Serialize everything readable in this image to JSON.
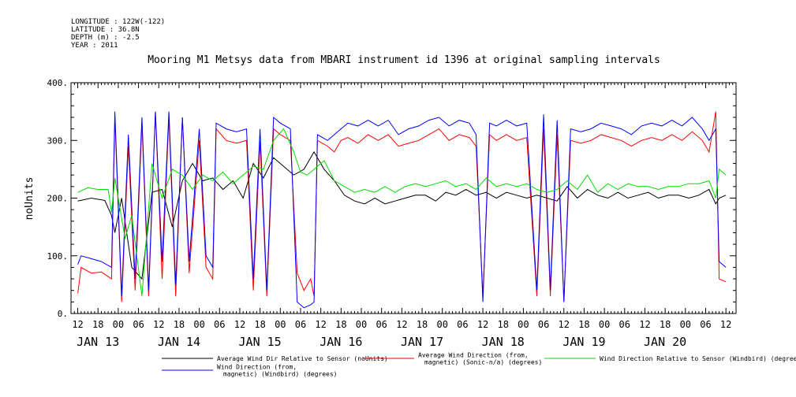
{
  "header": {
    "meta": [
      "LONGITUDE : 122W(-122)",
      "LATITUDE : 36.8N",
      "DEPTH (m) : -2.5",
      "YEAR : 2011"
    ]
  },
  "chart_data": {
    "type": "line",
    "title": "Mooring M1 Metsys data from MBARI instrument id 1396 at original sampling intervals",
    "ylabel": "noUnits",
    "xlabel": "",
    "ylim": [
      0,
      400
    ],
    "yticks": [
      0,
      100,
      200,
      300,
      400
    ],
    "ytick_labels": [
      "0.",
      "100.",
      "200.",
      "300.",
      "400."
    ],
    "x_range_hours": [
      -2,
      195
    ],
    "hour_tick_labels": [
      "12",
      "18",
      "00",
      "06",
      "12",
      "18",
      "00",
      "06",
      "12",
      "18",
      "00",
      "06",
      "12",
      "18",
      "00",
      "06",
      "12",
      "18",
      "00",
      "06",
      "12",
      "18",
      "00",
      "06",
      "12",
      "18",
      "00",
      "06",
      "12",
      "18",
      "00",
      "06",
      "12"
    ],
    "date_labels": [
      "JAN 13",
      "JAN 14",
      "JAN 15",
      "JAN 16",
      "JAN 17",
      "JAN 18",
      "JAN 19",
      "JAN 20"
    ],
    "grid": false,
    "legend_placement": "bottom",
    "series": [
      {
        "name": "Average Wind Dir Relative to Sensor (noUnits)",
        "color": "#000000",
        "points": [
          [
            0,
            195
          ],
          [
            4,
            200
          ],
          [
            8,
            196
          ],
          [
            10,
            170
          ],
          [
            11,
            140
          ],
          [
            13,
            200
          ],
          [
            16,
            80
          ],
          [
            19,
            60
          ],
          [
            22,
            210
          ],
          [
            25,
            215
          ],
          [
            28,
            150
          ],
          [
            31,
            230
          ],
          [
            34,
            260
          ],
          [
            37,
            230
          ],
          [
            40,
            235
          ],
          [
            43,
            215
          ],
          [
            46,
            230
          ],
          [
            49,
            200
          ],
          [
            52,
            260
          ],
          [
            55,
            235
          ],
          [
            58,
            270
          ],
          [
            61,
            255
          ],
          [
            64,
            240
          ],
          [
            67,
            250
          ],
          [
            70,
            280
          ],
          [
            73,
            250
          ],
          [
            76,
            230
          ],
          [
            79,
            205
          ],
          [
            82,
            195
          ],
          [
            85,
            190
          ],
          [
            88,
            200
          ],
          [
            91,
            190
          ],
          [
            94,
            195
          ],
          [
            97,
            200
          ],
          [
            100,
            205
          ],
          [
            103,
            205
          ],
          [
            106,
            195
          ],
          [
            109,
            210
          ],
          [
            112,
            205
          ],
          [
            115,
            215
          ],
          [
            118,
            205
          ],
          [
            121,
            210
          ],
          [
            124,
            200
          ],
          [
            127,
            210
          ],
          [
            130,
            205
          ],
          [
            133,
            200
          ],
          [
            136,
            205
          ],
          [
            139,
            200
          ],
          [
            142,
            195
          ],
          [
            145,
            220
          ],
          [
            148,
            200
          ],
          [
            151,
            215
          ],
          [
            154,
            205
          ],
          [
            157,
            200
          ],
          [
            160,
            210
          ],
          [
            163,
            200
          ],
          [
            166,
            205
          ],
          [
            169,
            210
          ],
          [
            172,
            200
          ],
          [
            175,
            205
          ],
          [
            178,
            205
          ],
          [
            181,
            200
          ],
          [
            184,
            205
          ],
          [
            187,
            215
          ],
          [
            189,
            190
          ],
          [
            190,
            200
          ],
          [
            192,
            205
          ]
        ]
      },
      {
        "name": "Average Wind Direction (from, magnetic) (Sonic-n/a) (degrees)",
        "color": "#ff0000",
        "points": [
          [
            0,
            35
          ],
          [
            1,
            80
          ],
          [
            4,
            70
          ],
          [
            7,
            72
          ],
          [
            10,
            60
          ],
          [
            11,
            340
          ],
          [
            13,
            20
          ],
          [
            15,
            290
          ],
          [
            17,
            40
          ],
          [
            19,
            330
          ],
          [
            21,
            30
          ],
          [
            23,
            350
          ],
          [
            25,
            60
          ],
          [
            27,
            340
          ],
          [
            29,
            30
          ],
          [
            31,
            340
          ],
          [
            33,
            70
          ],
          [
            36,
            300
          ],
          [
            38,
            80
          ],
          [
            40,
            60
          ],
          [
            41,
            320
          ],
          [
            44,
            300
          ],
          [
            47,
            295
          ],
          [
            50,
            300
          ],
          [
            52,
            40
          ],
          [
            54,
            300
          ],
          [
            56,
            30
          ],
          [
            58,
            320
          ],
          [
            60,
            310
          ],
          [
            63,
            300
          ],
          [
            65,
            70
          ],
          [
            67,
            40
          ],
          [
            69,
            60
          ],
          [
            70,
            30
          ],
          [
            71,
            300
          ],
          [
            74,
            290
          ],
          [
            76,
            280
          ],
          [
            78,
            300
          ],
          [
            80,
            305
          ],
          [
            83,
            295
          ],
          [
            86,
            310
          ],
          [
            89,
            300
          ],
          [
            92,
            310
          ],
          [
            95,
            290
          ],
          [
            98,
            295
          ],
          [
            101,
            300
          ],
          [
            104,
            310
          ],
          [
            107,
            320
          ],
          [
            110,
            300
          ],
          [
            113,
            310
          ],
          [
            116,
            305
          ],
          [
            118,
            290
          ],
          [
            120,
            30
          ],
          [
            122,
            310
          ],
          [
            124,
            300
          ],
          [
            127,
            310
          ],
          [
            130,
            300
          ],
          [
            133,
            305
          ],
          [
            136,
            30
          ],
          [
            138,
            320
          ],
          [
            140,
            30
          ],
          [
            142,
            310
          ],
          [
            144,
            20
          ],
          [
            146,
            300
          ],
          [
            149,
            295
          ],
          [
            152,
            300
          ],
          [
            155,
            310
          ],
          [
            158,
            305
          ],
          [
            161,
            300
          ],
          [
            164,
            290
          ],
          [
            167,
            300
          ],
          [
            170,
            305
          ],
          [
            173,
            300
          ],
          [
            176,
            310
          ],
          [
            179,
            300
          ],
          [
            182,
            315
          ],
          [
            185,
            300
          ],
          [
            187,
            280
          ],
          [
            189,
            350
          ],
          [
            190,
            60
          ],
          [
            192,
            55
          ]
        ]
      },
      {
        "name": "Wind Direction Relative to Sensor (Windbird) (degrees)",
        "color": "#00dd00",
        "points": [
          [
            0,
            210
          ],
          [
            3,
            218
          ],
          [
            6,
            215
          ],
          [
            9,
            215
          ],
          [
            10,
            175
          ],
          [
            11,
            235
          ],
          [
            14,
            130
          ],
          [
            16,
            170
          ],
          [
            19,
            30
          ],
          [
            22,
            260
          ],
          [
            25,
            200
          ],
          [
            28,
            250
          ],
          [
            31,
            240
          ],
          [
            34,
            215
          ],
          [
            37,
            240
          ],
          [
            40,
            230
          ],
          [
            43,
            245
          ],
          [
            46,
            225
          ],
          [
            49,
            240
          ],
          [
            52,
            255
          ],
          [
            55,
            250
          ],
          [
            58,
            300
          ],
          [
            61,
            320
          ],
          [
            64,
            280
          ],
          [
            66,
            245
          ],
          [
            68,
            240
          ],
          [
            70,
            250
          ],
          [
            73,
            265
          ],
          [
            76,
            230
          ],
          [
            79,
            220
          ],
          [
            82,
            210
          ],
          [
            85,
            215
          ],
          [
            88,
            210
          ],
          [
            91,
            220
          ],
          [
            94,
            210
          ],
          [
            97,
            220
          ],
          [
            100,
            225
          ],
          [
            103,
            220
          ],
          [
            106,
            225
          ],
          [
            109,
            230
          ],
          [
            112,
            220
          ],
          [
            115,
            225
          ],
          [
            118,
            215
          ],
          [
            121,
            235
          ],
          [
            124,
            220
          ],
          [
            127,
            225
          ],
          [
            130,
            220
          ],
          [
            133,
            225
          ],
          [
            136,
            215
          ],
          [
            139,
            210
          ],
          [
            142,
            215
          ],
          [
            145,
            230
          ],
          [
            148,
            215
          ],
          [
            151,
            240
          ],
          [
            154,
            210
          ],
          [
            157,
            225
          ],
          [
            160,
            215
          ],
          [
            163,
            225
          ],
          [
            166,
            220
          ],
          [
            169,
            220
          ],
          [
            172,
            215
          ],
          [
            175,
            220
          ],
          [
            178,
            220
          ],
          [
            181,
            225
          ],
          [
            184,
            225
          ],
          [
            187,
            230
          ],
          [
            189,
            200
          ],
          [
            190,
            250
          ],
          [
            192,
            240
          ]
        ]
      },
      {
        "name": "Wind Direction (from, magnetic) (Windbird) (degrees)",
        "color": "#0000ff",
        "points": [
          [
            0,
            85
          ],
          [
            1,
            100
          ],
          [
            4,
            95
          ],
          [
            7,
            90
          ],
          [
            10,
            80
          ],
          [
            11,
            350
          ],
          [
            13,
            30
          ],
          [
            15,
            310
          ],
          [
            17,
            60
          ],
          [
            19,
            340
          ],
          [
            21,
            40
          ],
          [
            23,
            350
          ],
          [
            25,
            90
          ],
          [
            27,
            350
          ],
          [
            29,
            50
          ],
          [
            31,
            340
          ],
          [
            33,
            90
          ],
          [
            36,
            320
          ],
          [
            38,
            100
          ],
          [
            40,
            80
          ],
          [
            41,
            330
          ],
          [
            44,
            320
          ],
          [
            47,
            315
          ],
          [
            50,
            320
          ],
          [
            52,
            60
          ],
          [
            54,
            320
          ],
          [
            56,
            40
          ],
          [
            58,
            340
          ],
          [
            60,
            330
          ],
          [
            63,
            320
          ],
          [
            65,
            20
          ],
          [
            67,
            10
          ],
          [
            69,
            15
          ],
          [
            70,
            20
          ],
          [
            71,
            310
          ],
          [
            74,
            300
          ],
          [
            76,
            310
          ],
          [
            78,
            320
          ],
          [
            80,
            330
          ],
          [
            83,
            325
          ],
          [
            86,
            335
          ],
          [
            89,
            325
          ],
          [
            92,
            335
          ],
          [
            95,
            310
          ],
          [
            98,
            320
          ],
          [
            101,
            325
          ],
          [
            104,
            335
          ],
          [
            107,
            340
          ],
          [
            110,
            325
          ],
          [
            113,
            335
          ],
          [
            116,
            330
          ],
          [
            118,
            310
          ],
          [
            120,
            20
          ],
          [
            122,
            330
          ],
          [
            124,
            325
          ],
          [
            127,
            335
          ],
          [
            130,
            325
          ],
          [
            133,
            330
          ],
          [
            136,
            40
          ],
          [
            138,
            345
          ],
          [
            140,
            40
          ],
          [
            142,
            335
          ],
          [
            144,
            20
          ],
          [
            146,
            320
          ],
          [
            149,
            315
          ],
          [
            152,
            320
          ],
          [
            155,
            330
          ],
          [
            158,
            325
          ],
          [
            161,
            320
          ],
          [
            164,
            310
          ],
          [
            167,
            325
          ],
          [
            170,
            330
          ],
          [
            173,
            325
          ],
          [
            176,
            335
          ],
          [
            179,
            325
          ],
          [
            182,
            340
          ],
          [
            185,
            320
          ],
          [
            187,
            300
          ],
          [
            189,
            320
          ],
          [
            190,
            90
          ],
          [
            192,
            80
          ]
        ]
      }
    ],
    "legend": [
      {
        "lines": [
          "Average Wind Dir Relative to Sensor (noUnits)"
        ],
        "color": "#000000"
      },
      {
        "lines": [
          "Average Wind Direction (from,",
          "magnetic) (Sonic-n/a) (degrees)"
        ],
        "color": "#ff0000"
      },
      {
        "lines": [
          "Wind Direction Relative to Sensor (Windbird) (degrees)"
        ],
        "color": "#00dd00"
      },
      {
        "lines": [
          "Wind Direction (from,",
          "magnetic) (Windbird) (degrees)"
        ],
        "color": "#0000ff"
      }
    ]
  }
}
